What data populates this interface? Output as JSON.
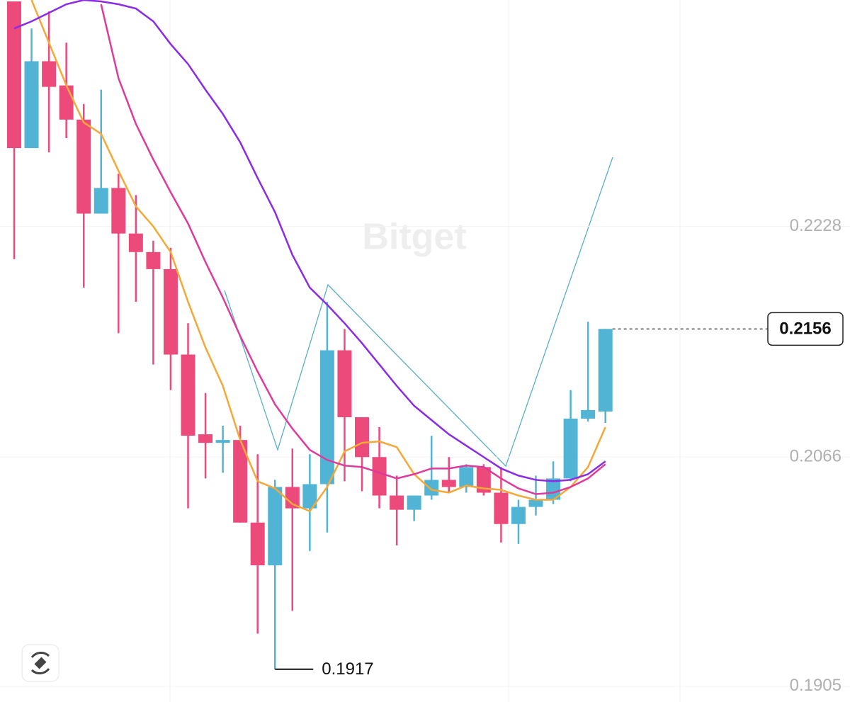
{
  "chart_data": {
    "type": "candlestick",
    "watermark": "Bitget",
    "open": [
      0.2386,
      0.2283,
      0.2344,
      0.2327,
      0.2303,
      0.2237,
      0.2255,
      0.2223,
      0.221,
      0.2198,
      0.2138,
      0.2082,
      0.2076,
      0.2078,
      0.202,
      0.199,
      0.2045,
      0.203,
      0.2047,
      0.2141,
      0.2094,
      0.2066,
      0.2039,
      0.2029,
      0.2039,
      0.205,
      0.2045,
      0.2059,
      0.2041,
      0.2019,
      0.2031,
      0.2036,
      0.2051,
      0.2093,
      0.2098
    ],
    "high": [
      0.2386,
      0.2367,
      0.2379,
      0.2357,
      0.2314,
      0.2324,
      0.2265,
      0.225,
      0.2218,
      0.2213,
      0.216,
      0.2111,
      0.2088,
      0.2088,
      0.2068,
      0.205,
      0.2072,
      0.2068,
      0.2175,
      0.2156,
      0.2094,
      0.2087,
      0.2053,
      0.2039,
      0.2081,
      0.2066,
      0.2061,
      0.2061,
      0.2059,
      0.2036,
      0.2053,
      0.2063,
      0.2113,
      0.2161,
      0.2156
    ],
    "low": [
      0.2205,
      0.2283,
      0.228,
      0.229,
      0.2185,
      0.2237,
      0.2153,
      0.2175,
      0.2131,
      0.2113,
      0.203,
      0.2051,
      0.2055,
      0.202,
      0.1942,
      0.1917,
      0.1958,
      0.2,
      0.2013,
      0.2049,
      0.2042,
      0.203,
      0.2004,
      0.2021,
      0.2036,
      0.2041,
      0.2041,
      0.2039,
      0.2006,
      0.2005,
      0.2025,
      0.2033,
      0.2049,
      0.2091,
      0.209
    ],
    "close": [
      0.2283,
      0.2344,
      0.2326,
      0.2303,
      0.2237,
      0.2255,
      0.2223,
      0.221,
      0.2198,
      0.2138,
      0.2081,
      0.2076,
      0.2078,
      0.202,
      0.199,
      0.2045,
      0.203,
      0.2047,
      0.2141,
      0.2094,
      0.2066,
      0.2039,
      0.2029,
      0.2039,
      0.205,
      0.2045,
      0.2059,
      0.2041,
      0.2019,
      0.2031,
      0.2036,
      0.2051,
      0.2093,
      0.2099,
      0.2156
    ],
    "up_color": "#52b4d5",
    "down_color": "#ec4a7b",
    "series": [
      {
        "color": "#f4a836",
        "values": [
          null,
          0.2387,
          0.2357,
          0.2327,
          0.2301,
          0.2293,
          0.2267,
          0.2242,
          0.2228,
          0.221,
          0.2175,
          0.2143,
          0.2116,
          0.2078,
          0.2049,
          0.2044,
          0.2033,
          0.2028,
          0.2045,
          0.207,
          0.2076,
          0.2077,
          0.2073,
          0.2054,
          0.2043,
          0.2041,
          0.2046,
          0.2044,
          0.2043,
          0.2039,
          0.2036,
          0.2036,
          0.2045,
          0.2059,
          0.2087
        ]
      },
      {
        "color": "#df3a9b",
        "values": [
          null,
          null,
          null,
          null,
          null,
          0.2384,
          0.2332,
          0.23,
          0.2275,
          0.2252,
          0.223,
          0.2203,
          0.2178,
          0.2151,
          0.2126,
          0.2103,
          0.2086,
          0.2071,
          0.2064,
          0.206,
          0.2059,
          0.2055,
          0.2051,
          0.2054,
          0.2058,
          0.2058,
          0.206,
          0.2059,
          0.2051,
          0.2044,
          0.204,
          0.2041,
          0.2045,
          0.2051,
          0.2061
        ]
      },
      {
        "color": "#8b2be6",
        "values": [
          0.2367,
          0.2372,
          0.2378,
          0.2384,
          0.2387,
          0.2386,
          0.2384,
          0.2381,
          0.2372,
          0.2356,
          0.2342,
          0.2324,
          0.2307,
          0.2287,
          0.2262,
          0.2238,
          0.2208,
          0.2185,
          0.2173,
          0.216,
          0.2146,
          0.2131,
          0.2116,
          0.2102,
          0.2092,
          0.2082,
          0.2074,
          0.2066,
          0.2058,
          0.2053,
          0.205,
          0.2049,
          0.205,
          0.2054,
          0.2063
        ]
      }
    ],
    "last_price": 0.2156,
    "low_label": 0.1917,
    "ylim": [
      0.1894,
      0.2387
    ],
    "yticks": [
      0.2228,
      0.2066,
      0.1905
    ],
    "grid": true
  }
}
